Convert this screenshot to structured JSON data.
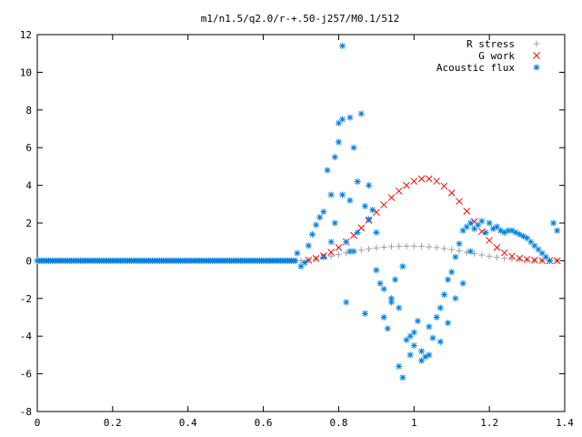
{
  "chart_data": {
    "type": "scatter",
    "title": "m1/n1.5/q2.0/r-+.50-j257/M0.1/512",
    "xlabel": "",
    "ylabel": "",
    "xlim": [
      0,
      1.4
    ],
    "ylim": [
      -8,
      12
    ],
    "x_ticks": [
      "0",
      "0.2",
      "0.4",
      "0.6",
      "0.8",
      "1",
      "1.2",
      "1.4"
    ],
    "y_ticks": [
      "-8",
      "-6",
      "-4",
      "-2",
      "0",
      "2",
      "4",
      "6",
      "8",
      "10",
      "12"
    ],
    "grid": false,
    "legend_position": "top-right",
    "series": [
      {
        "name": "R stress",
        "marker": "plus",
        "color": "#a0a0a0",
        "x": [
          0.7,
          0.72,
          0.74,
          0.76,
          0.78,
          0.8,
          0.82,
          0.84,
          0.86,
          0.88,
          0.9,
          0.92,
          0.94,
          0.96,
          0.98,
          1.0,
          1.02,
          1.04,
          1.06,
          1.08,
          1.1,
          1.12,
          1.14,
          1.16,
          1.18,
          1.2,
          1.22,
          1.24,
          1.26,
          1.28,
          1.3,
          1.32,
          1.34,
          1.36,
          1.38
        ],
        "y": [
          0.0,
          0.04,
          0.1,
          0.17,
          0.25,
          0.33,
          0.41,
          0.49,
          0.56,
          0.62,
          0.68,
          0.72,
          0.75,
          0.77,
          0.78,
          0.78,
          0.77,
          0.74,
          0.7,
          0.65,
          0.59,
          0.52,
          0.45,
          0.38,
          0.31,
          0.24,
          0.18,
          0.13,
          0.09,
          0.06,
          0.04,
          0.02,
          0.01,
          0.0,
          0.0
        ]
      },
      {
        "name": "G work",
        "marker": "cross",
        "color": "#ff0000",
        "x": [
          0.72,
          0.74,
          0.76,
          0.78,
          0.8,
          0.82,
          0.84,
          0.86,
          0.88,
          0.9,
          0.92,
          0.94,
          0.96,
          0.98,
          1.0,
          1.02,
          1.04,
          1.06,
          1.08,
          1.1,
          1.12,
          1.14,
          1.16,
          1.18,
          1.2,
          1.22,
          1.24,
          1.26,
          1.28,
          1.3,
          1.32,
          1.34,
          1.36,
          1.38
        ],
        "y": [
          0.03,
          0.12,
          0.26,
          0.45,
          0.7,
          1.0,
          1.35,
          1.74,
          2.15,
          2.57,
          2.97,
          3.35,
          3.7,
          4.0,
          4.22,
          4.35,
          4.35,
          4.22,
          3.96,
          3.6,
          3.15,
          2.63,
          2.08,
          1.55,
          1.08,
          0.7,
          0.42,
          0.24,
          0.13,
          0.07,
          0.03,
          0.01,
          0.0,
          0.0
        ]
      },
      {
        "name": "Acoustic flux",
        "marker": "star",
        "color": "#0080e0",
        "x": [
          0.69,
          0.7,
          0.71,
          0.72,
          0.73,
          0.74,
          0.75,
          0.76,
          0.77,
          0.78,
          0.79,
          0.8,
          0.8,
          0.81,
          0.81,
          0.82,
          0.82,
          0.83,
          0.83,
          0.84,
          0.84,
          0.85,
          0.86,
          0.87,
          0.87,
          0.88,
          0.89,
          0.9,
          0.91,
          0.92,
          0.93,
          0.94,
          0.95,
          0.96,
          0.96,
          0.97,
          0.98,
          0.99,
          1.0,
          1.0,
          1.01,
          1.02,
          1.03,
          1.04,
          1.05,
          1.06,
          1.07,
          1.08,
          1.09,
          1.1,
          1.11,
          1.12,
          1.13,
          1.14,
          1.15,
          1.16,
          1.17,
          1.18,
          1.19,
          1.2,
          1.21,
          1.22,
          1.23,
          1.24,
          1.25,
          1.26,
          1.27,
          1.28,
          1.29,
          1.3,
          1.31,
          1.32,
          1.33,
          1.34,
          1.35,
          1.36,
          1.37,
          1.38,
          0.76,
          0.78,
          0.79,
          0.81,
          0.83,
          0.85,
          0.88,
          0.9,
          0.92,
          0.94,
          0.97,
          0.99,
          1.02,
          1.04,
          1.07,
          1.09,
          1.11,
          1.13,
          1.15
        ],
        "y": [
          0.4,
          -0.3,
          -0.1,
          0.8,
          1.4,
          1.9,
          2.3,
          2.6,
          4.8,
          3.5,
          5.5,
          6.3,
          7.3,
          11.4,
          7.5,
          1.0,
          -2.2,
          7.6,
          3.2,
          6.0,
          0.5,
          4.2,
          7.8,
          2.9,
          -2.8,
          4.0,
          2.7,
          1.5,
          -1.2,
          -3.0,
          -3.6,
          -2.2,
          -1.0,
          -5.6,
          -2.5,
          -6.2,
          -4.2,
          -5.0,
          -3.8,
          -4.5,
          -3.2,
          -4.8,
          -5.1,
          -3.5,
          -4.1,
          -3.0,
          -2.5,
          -1.8,
          -1.0,
          -0.6,
          0.2,
          0.9,
          1.6,
          1.8,
          2.0,
          1.7,
          1.9,
          2.1,
          1.5,
          2.0,
          1.7,
          1.8,
          1.6,
          1.5,
          1.6,
          1.6,
          1.5,
          1.4,
          1.3,
          1.2,
          1.0,
          0.8,
          0.6,
          0.4,
          0.2,
          0.0,
          2.0,
          1.6,
          0.2,
          1.0,
          2.0,
          3.5,
          0.5,
          1.5,
          2.2,
          -0.5,
          -1.5,
          -2.0,
          -0.3,
          -4.0,
          -5.3,
          -5.0,
          -4.3,
          -3.3,
          -2.0,
          -1.2,
          0.5
        ]
      }
    ]
  }
}
